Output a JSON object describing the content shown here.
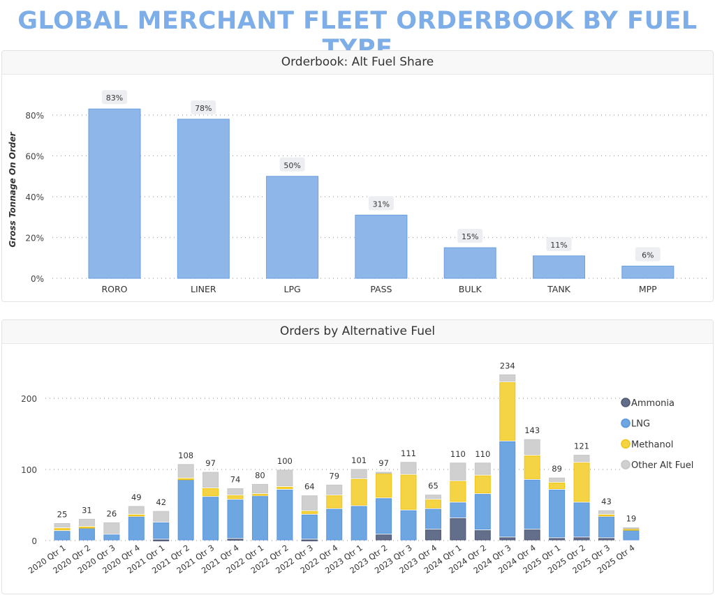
{
  "page_title": "GLOBAL MERCHANT FLEET ORDERBOOK BY FUEL TYPE",
  "chart_data": [
    {
      "type": "bar",
      "title": "Orderbook: Alt Fuel Share",
      "xlabel": "",
      "ylabel": "Gross Tonnage On Order",
      "categories": [
        "RORO",
        "LINER",
        "LPG",
        "PASS",
        "BULK",
        "TANK",
        "MPP"
      ],
      "values": [
        83,
        78,
        50,
        31,
        15,
        11,
        6
      ],
      "data_labels": [
        "83%",
        "78%",
        "50%",
        "31%",
        "15%",
        "11%",
        "6%"
      ],
      "ylim": [
        0,
        80
      ],
      "yticks": [
        "0%",
        "20%",
        "40%",
        "60%",
        "80%"
      ],
      "ytick_values": [
        0,
        20,
        40,
        60,
        80
      ],
      "grid": true,
      "bar_color": "#8fb6e8"
    },
    {
      "type": "bar",
      "stacked": true,
      "title": "Orders by Alternative Fuel",
      "xlabel": "",
      "ylabel": "",
      "categories": [
        "2020 Qtr 1",
        "2020 Qtr 2",
        "2020 Qtr 3",
        "2020 Qtr 4",
        "2021 Qtr 1",
        "2021 Qtr 2",
        "2021 Qtr 3",
        "2021 Qtr 4",
        "2022 Qtr 1",
        "2022 Qtr 2",
        "2022 Qtr 3",
        "2022 Qtr 4",
        "2023 Qtr 1",
        "2023 Qtr 2",
        "2023 Qtr 3",
        "2023 Qtr 4",
        "2024 Qtr 1",
        "2024 Qtr 2",
        "2024 Qtr 3",
        "2024 Qtr 4",
        "2025 Qtr 1",
        "2025 Qtr 2",
        "2025 Qtr 3",
        "2025 Qtr 4"
      ],
      "series": [
        {
          "name": "Ammonia",
          "color": "#636e8a",
          "values": [
            0,
            0,
            0,
            0,
            2,
            0,
            0,
            3,
            0,
            0,
            2,
            0,
            0,
            9,
            0,
            16,
            32,
            15,
            5,
            16,
            4,
            5,
            4,
            0
          ]
        },
        {
          "name": "LNG",
          "color": "#6ea6e2",
          "values": [
            14,
            18,
            9,
            34,
            24,
            86,
            62,
            55,
            63,
            72,
            35,
            45,
            49,
            51,
            43,
            29,
            22,
            51,
            135,
            70,
            68,
            49,
            30,
            15
          ]
        },
        {
          "name": "Methanol",
          "color": "#f4d345",
          "values": [
            4,
            2,
            0,
            3,
            0,
            2,
            12,
            6,
            3,
            4,
            5,
            19,
            38,
            35,
            50,
            13,
            30,
            26,
            83,
            34,
            10,
            56,
            3,
            2
          ]
        },
        {
          "name": "Other Alt Fuel",
          "color": "#d0d0d0",
          "values": [
            7,
            11,
            17,
            12,
            16,
            20,
            23,
            10,
            14,
            24,
            22,
            15,
            14,
            2,
            18,
            7,
            26,
            18,
            11,
            23,
            7,
            11,
            6,
            2
          ]
        }
      ],
      "totals": [
        25,
        31,
        26,
        49,
        42,
        108,
        97,
        74,
        80,
        100,
        64,
        79,
        101,
        97,
        111,
        65,
        110,
        110,
        234,
        143,
        89,
        121,
        43,
        19
      ],
      "ylim": [
        0,
        240
      ],
      "yticks": [
        "0",
        "100",
        "200"
      ],
      "ytick_values": [
        0,
        100,
        200
      ],
      "grid": true,
      "legend_position": "right"
    }
  ]
}
